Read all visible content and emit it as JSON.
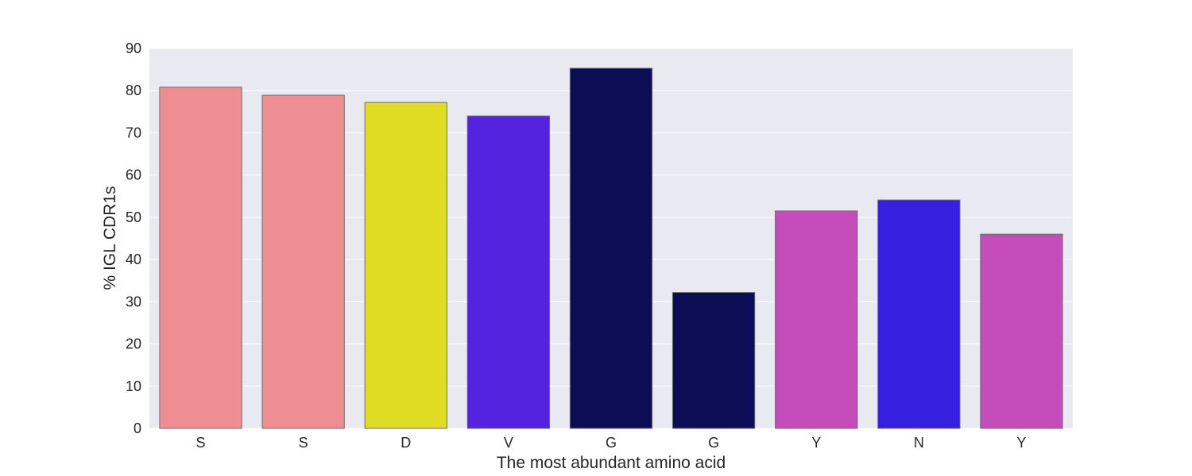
{
  "chart_data": {
    "type": "bar",
    "categories": [
      "S",
      "S",
      "D",
      "V",
      "G",
      "G",
      "Y",
      "N",
      "Y"
    ],
    "values": [
      80.8,
      78.9,
      77.2,
      74.0,
      85.3,
      32.2,
      51.5,
      54.1,
      46.0
    ],
    "bar_colors": [
      "#ee8d92",
      "#ee8d92",
      "#e0dc24",
      "#5323e0",
      "#0c0d55",
      "#0c0d55",
      "#c54cbb",
      "#3520e0",
      "#c54cbb"
    ],
    "xlabel": "The most abundant amino acid",
    "ylabel": "% IGL CDR1s",
    "ylim": [
      0,
      90
    ],
    "yticks": [
      0,
      10,
      20,
      30,
      40,
      50,
      60,
      70,
      80,
      90
    ],
    "grid": true,
    "background_color": "#e9e9f2",
    "grid_color": "#ffffff",
    "legend": "none"
  }
}
